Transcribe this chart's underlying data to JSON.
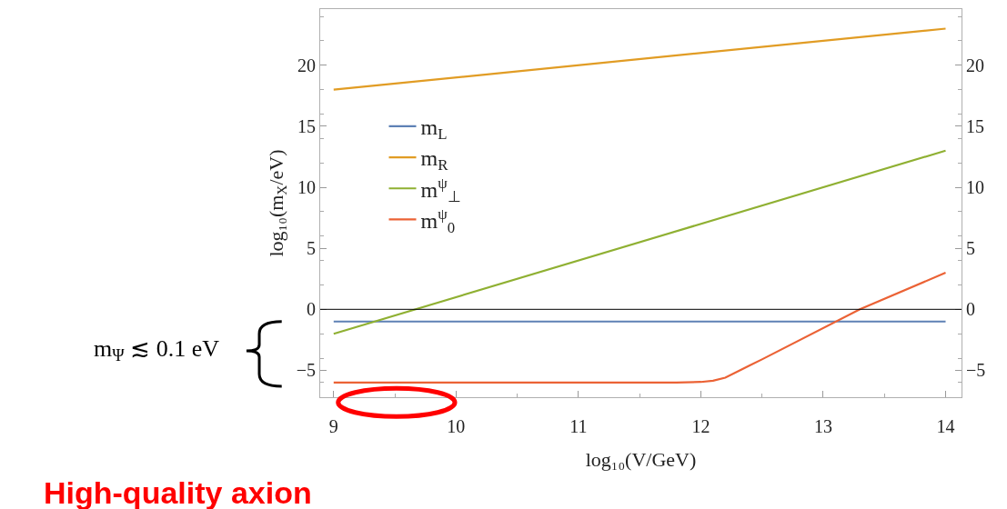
{
  "chart_data": {
    "type": "line",
    "xlabel": "log₁₀(V/GeV)",
    "ylabel": "log₁₀(m$_{X}$/eV)",
    "xlim": [
      8.89,
      14.13
    ],
    "xticks": [
      9,
      10,
      11,
      12,
      13,
      14
    ],
    "ylim": [
      -7.2,
      24.6
    ],
    "yticks": [
      {
        "value": -5,
        "label": "−5"
      },
      0,
      5,
      10,
      15,
      20
    ],
    "y2lim": [
      -7.2,
      24.6
    ],
    "y2ticks": [
      {
        "value": -5,
        "label": "−5"
      },
      0,
      5,
      10,
      15,
      20
    ],
    "series": [
      {
        "name": "m$_{L}$",
        "color": "#5e81b5",
        "x": [
          9,
          14
        ],
        "values": [
          -1,
          -1
        ]
      },
      {
        "name": "m$_{R}$",
        "color": "#e19c24",
        "x": [
          9,
          14
        ],
        "values": [
          18,
          23
        ]
      },
      {
        "name": "m$^{ψ}$$_{⊥}$",
        "color": "#8fb032",
        "x": [
          9,
          14
        ],
        "values": [
          -2,
          13
        ]
      },
      {
        "name": "m$^{ψ}$$_{0}$",
        "color": "#eb6235",
        "x": [
          9,
          11.8,
          12.0,
          12.1,
          12.2,
          12.3,
          12.4,
          12.5,
          13.3,
          14
        ],
        "values": [
          -6,
          -6,
          -5.95,
          -5.85,
          -5.6,
          -5.1,
          -4.6,
          -4.1,
          0,
          3
        ]
      }
    ],
    "ref_lines": [
      {
        "axis": "y",
        "value": 0,
        "color": "#000000"
      }
    ],
    "annotations": [
      "m$_{Ψ}$ ≲ 0.1 eV",
      "High-quality axion"
    ],
    "legend": "top left",
    "line_style": "solid",
    "marker": "none"
  }
}
